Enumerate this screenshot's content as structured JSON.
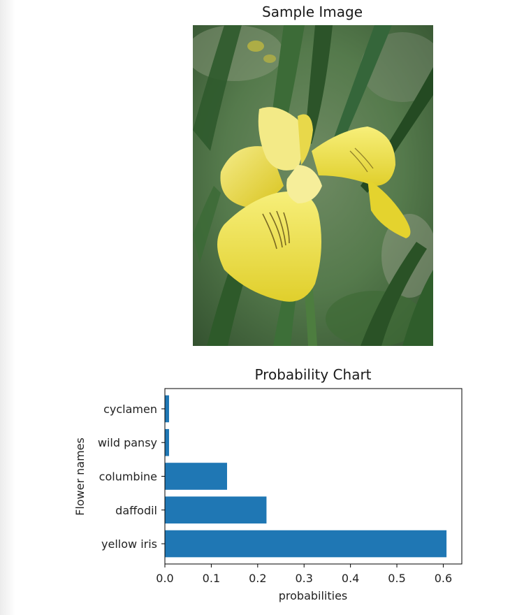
{
  "image_panel": {
    "title": "Sample Image"
  },
  "chart_data": {
    "type": "bar",
    "orientation": "horizontal",
    "title": "Probability Chart",
    "xlabel": "probabilities",
    "ylabel": "Flower names",
    "categories": [
      "yellow iris",
      "daffodil",
      "columbine",
      "wild pansy",
      "cyclamen"
    ],
    "values": [
      0.607,
      0.219,
      0.134,
      0.009,
      0.009
    ],
    "xlim": [
      0.0,
      0.64
    ],
    "xticks": [
      0.0,
      0.1,
      0.2,
      0.3,
      0.4,
      0.5,
      0.6
    ],
    "xtick_labels": [
      "0.0",
      "0.1",
      "0.2",
      "0.3",
      "0.4",
      "0.5",
      "0.6"
    ],
    "bar_color": "#1f77b4",
    "grid": false
  }
}
